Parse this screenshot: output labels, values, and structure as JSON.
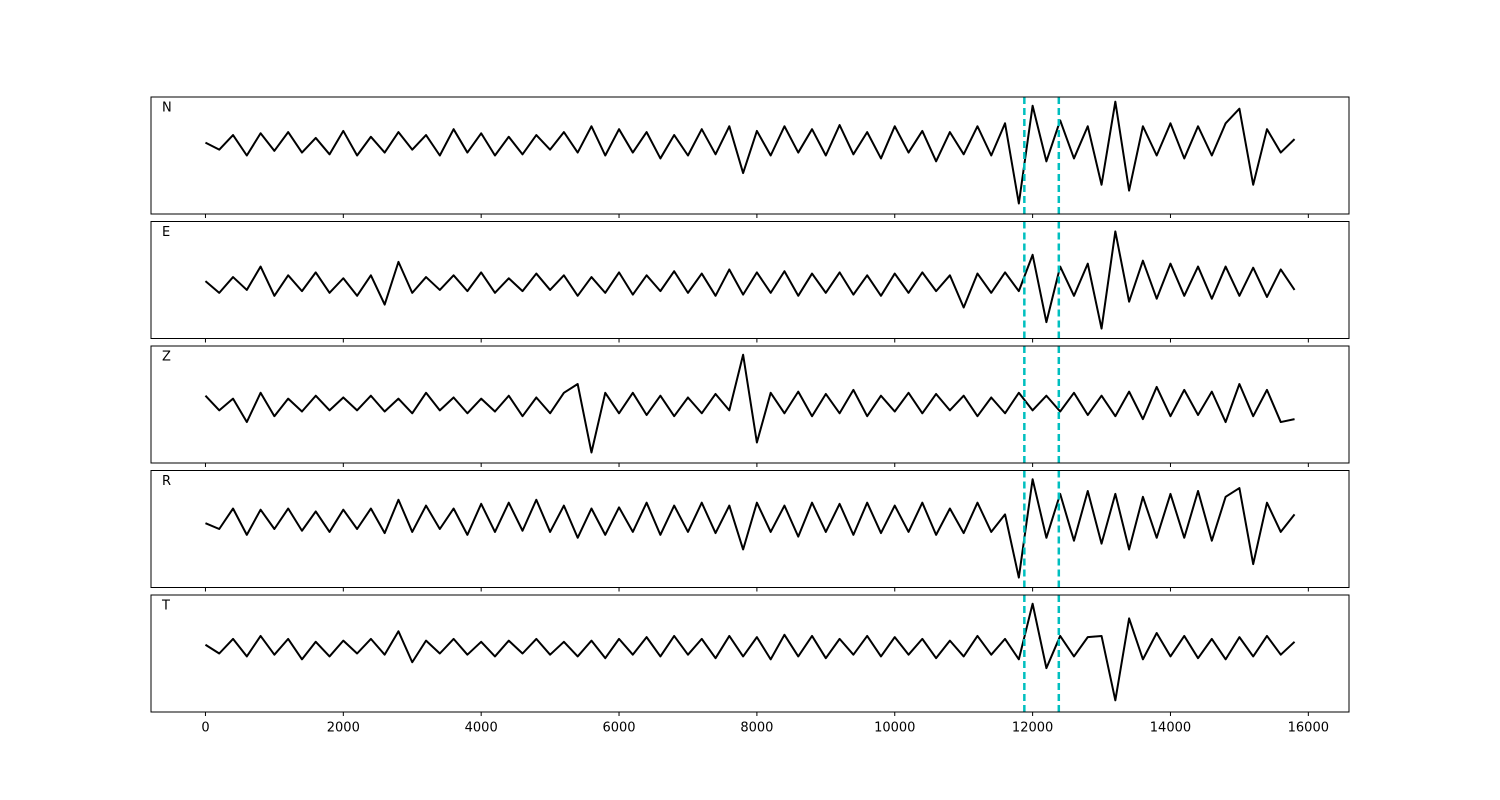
{
  "chart_data": [
    {
      "type": "line",
      "annotation": "N",
      "xlim": [
        -790,
        16590
      ],
      "ylim": [
        -1.2,
        0.8
      ],
      "vlines": [
        11880,
        12380
      ],
      "vline_color": "#00bfbf",
      "x": [
        0,
        200,
        400,
        600,
        800,
        1000,
        1200,
        1400,
        1600,
        1800,
        2000,
        2200,
        2400,
        2600,
        2800,
        3000,
        3200,
        3400,
        3600,
        3800,
        4000,
        4200,
        4400,
        4600,
        4800,
        5000,
        5200,
        5400,
        5600,
        5800,
        6000,
        6200,
        6400,
        6600,
        6800,
        7000,
        7200,
        7400,
        7600,
        7800,
        8000,
        8200,
        8400,
        8600,
        8800,
        9000,
        9200,
        9400,
        9600,
        9800,
        10000,
        10200,
        10400,
        10600,
        10800,
        11000,
        11200,
        11400,
        11600,
        11800,
        12000,
        12200,
        12400,
        12600,
        12800,
        13000,
        13200,
        13400,
        13600,
        13800,
        14000,
        14200,
        14400,
        14600,
        14800,
        15000,
        15200,
        15400,
        15600,
        15800
      ],
      "series": [
        {
          "color": "#000000",
          "values": [
            0.02,
            -0.1,
            0.15,
            -0.2,
            0.18,
            -0.12,
            0.2,
            -0.15,
            0.1,
            -0.18,
            0.22,
            -0.2,
            0.12,
            -0.15,
            0.2,
            -0.1,
            0.15,
            -0.2,
            0.25,
            -0.15,
            0.18,
            -0.2,
            0.12,
            -0.18,
            0.15,
            -0.1,
            0.2,
            -0.15,
            0.3,
            -0.2,
            0.25,
            -0.15,
            0.2,
            -0.25,
            0.15,
            -0.2,
            0.25,
            -0.18,
            0.3,
            -0.5,
            0.22,
            -0.2,
            0.3,
            -0.15,
            0.25,
            -0.2,
            0.32,
            -0.18,
            0.2,
            -0.25,
            0.3,
            -0.15,
            0.22,
            -0.3,
            0.2,
            -0.18,
            0.3,
            -0.2,
            0.35,
            -1.02,
            0.65,
            -0.3,
            0.4,
            -0.25,
            0.3,
            -0.7,
            0.72,
            -0.8,
            0.3,
            -0.2,
            0.35,
            -0.25,
            0.3,
            -0.2,
            0.35,
            0.6,
            -0.7,
            0.25,
            -0.15,
            0.08
          ]
        }
      ]
    },
    {
      "type": "line",
      "annotation": "E",
      "xlim": [
        -790,
        16590
      ],
      "ylim": [
        -0.93,
        1.07
      ],
      "vlines": [
        11880,
        12380
      ],
      "vline_color": "#00bfbf",
      "x": [
        0,
        200,
        400,
        600,
        800,
        1000,
        1200,
        1400,
        1600,
        1800,
        2000,
        2200,
        2400,
        2600,
        2800,
        3000,
        3200,
        3400,
        3600,
        3800,
        4000,
        4200,
        4400,
        4600,
        4800,
        5000,
        5200,
        5400,
        5600,
        5800,
        6000,
        6200,
        6400,
        6600,
        6800,
        7000,
        7200,
        7400,
        7600,
        7800,
        8000,
        8200,
        8400,
        8600,
        8800,
        9000,
        9200,
        9400,
        9600,
        9800,
        10000,
        10200,
        10400,
        10600,
        10800,
        11000,
        11200,
        11400,
        11600,
        11800,
        12000,
        12200,
        12400,
        12600,
        12800,
        13000,
        13200,
        13400,
        13600,
        13800,
        14000,
        14200,
        14400,
        14600,
        14800,
        15000,
        15200,
        15400,
        15600,
        15800
      ],
      "series": [
        {
          "color": "#000000",
          "values": [
            0.05,
            -0.15,
            0.12,
            -0.1,
            0.3,
            -0.2,
            0.15,
            -0.12,
            0.2,
            -0.15,
            0.1,
            -0.2,
            0.15,
            -0.35,
            0.38,
            -0.15,
            0.12,
            -0.1,
            0.15,
            -0.12,
            0.2,
            -0.15,
            0.1,
            -0.12,
            0.18,
            -0.1,
            0.15,
            -0.2,
            0.12,
            -0.15,
            0.2,
            -0.18,
            0.15,
            -0.12,
            0.22,
            -0.15,
            0.18,
            -0.2,
            0.25,
            -0.18,
            0.2,
            -0.15,
            0.22,
            -0.2,
            0.18,
            -0.15,
            0.2,
            -0.18,
            0.15,
            -0.2,
            0.18,
            -0.15,
            0.2,
            -0.12,
            0.15,
            -0.4,
            0.18,
            -0.15,
            0.2,
            -0.12,
            0.5,
            -0.65,
            0.3,
            -0.2,
            0.35,
            -0.76,
            0.9,
            -0.3,
            0.4,
            -0.25,
            0.35,
            -0.2,
            0.3,
            -0.25,
            0.3,
            -0.2,
            0.28,
            -0.22,
            0.25,
            -0.1
          ]
        }
      ]
    },
    {
      "type": "line",
      "annotation": "Z",
      "xlim": [
        -790,
        16590
      ],
      "ylim": [
        -1.0,
        1.0
      ],
      "vlines": [
        11880,
        12380
      ],
      "vline_color": "#00bfbf",
      "x": [
        0,
        200,
        400,
        600,
        800,
        1000,
        1200,
        1400,
        1600,
        1800,
        2000,
        2200,
        2400,
        2600,
        2800,
        3000,
        3200,
        3400,
        3600,
        3800,
        4000,
        4200,
        4400,
        4600,
        4800,
        5000,
        5200,
        5400,
        5600,
        5800,
        6000,
        6200,
        6400,
        6600,
        6800,
        7000,
        7200,
        7400,
        7600,
        7800,
        8000,
        8200,
        8400,
        8600,
        8800,
        9000,
        9200,
        9400,
        9600,
        9800,
        10000,
        10200,
        10400,
        10600,
        10800,
        11000,
        11200,
        11400,
        11600,
        11800,
        12000,
        12200,
        12400,
        12600,
        12800,
        13000,
        13200,
        13400,
        13600,
        13800,
        14000,
        14200,
        14400,
        14600,
        14800,
        15000,
        15200,
        15400,
        15600,
        15800
      ],
      "series": [
        {
          "color": "#000000",
          "values": [
            0.15,
            -0.1,
            0.1,
            -0.3,
            0.2,
            -0.2,
            0.1,
            -0.12,
            0.15,
            -0.1,
            0.12,
            -0.1,
            0.15,
            -0.12,
            0.1,
            -0.15,
            0.2,
            -0.1,
            0.12,
            -0.15,
            0.1,
            -0.12,
            0.15,
            -0.2,
            0.12,
            -0.15,
            0.2,
            0.35,
            -0.82,
            0.2,
            -0.15,
            0.2,
            -0.18,
            0.15,
            -0.2,
            0.12,
            -0.15,
            0.18,
            -0.1,
            0.85,
            -0.65,
            0.2,
            -0.15,
            0.22,
            -0.2,
            0.18,
            -0.15,
            0.25,
            -0.2,
            0.15,
            -0.12,
            0.2,
            -0.15,
            0.18,
            -0.1,
            0.15,
            -0.2,
            0.12,
            -0.15,
            0.2,
            -0.1,
            0.15,
            -0.12,
            0.2,
            -0.18,
            0.15,
            -0.2,
            0.22,
            -0.25,
            0.3,
            -0.2,
            0.25,
            -0.18,
            0.22,
            -0.3,
            0.35,
            -0.2,
            0.25,
            -0.3,
            -0.25
          ]
        }
      ]
    },
    {
      "type": "line",
      "annotation": "R",
      "xlim": [
        -790,
        16590
      ],
      "ylim": [
        -1.15,
        0.85
      ],
      "vlines": [
        11880,
        12380
      ],
      "vline_color": "#00bfbf",
      "x": [
        0,
        200,
        400,
        600,
        800,
        1000,
        1200,
        1400,
        1600,
        1800,
        2000,
        2200,
        2400,
        2600,
        2800,
        3000,
        3200,
        3400,
        3600,
        3800,
        4000,
        4200,
        4400,
        4600,
        4800,
        5000,
        5200,
        5400,
        5600,
        5800,
        6000,
        6200,
        6400,
        6600,
        6800,
        7000,
        7200,
        7400,
        7600,
        7800,
        8000,
        8200,
        8400,
        8600,
        8800,
        9000,
        9200,
        9400,
        9600,
        9800,
        10000,
        10200,
        10400,
        10600,
        10800,
        11000,
        11200,
        11400,
        11600,
        11800,
        12000,
        12200,
        12400,
        12600,
        12800,
        13000,
        13200,
        13400,
        13600,
        13800,
        14000,
        14200,
        14400,
        14600,
        14800,
        15000,
        15200,
        15400,
        15600,
        15800
      ],
      "series": [
        {
          "color": "#000000",
          "values": [
            -0.05,
            -0.15,
            0.2,
            -0.25,
            0.18,
            -0.15,
            0.2,
            -0.18,
            0.15,
            -0.2,
            0.18,
            -0.15,
            0.2,
            -0.22,
            0.35,
            -0.2,
            0.25,
            -0.15,
            0.2,
            -0.25,
            0.28,
            -0.2,
            0.3,
            -0.18,
            0.35,
            -0.2,
            0.25,
            -0.3,
            0.2,
            -0.25,
            0.22,
            -0.2,
            0.3,
            -0.25,
            0.25,
            -0.2,
            0.3,
            -0.22,
            0.25,
            -0.5,
            0.3,
            -0.2,
            0.25,
            -0.28,
            0.3,
            -0.2,
            0.28,
            -0.25,
            0.3,
            -0.22,
            0.25,
            -0.2,
            0.3,
            -0.25,
            0.2,
            -0.22,
            0.3,
            -0.2,
            0.1,
            -0.98,
            0.7,
            -0.3,
            0.45,
            -0.35,
            0.5,
            -0.4,
            0.45,
            -0.5,
            0.4,
            -0.3,
            0.45,
            -0.3,
            0.5,
            -0.35,
            0.4,
            0.55,
            -0.75,
            0.3,
            -0.2,
            0.1
          ]
        }
      ]
    },
    {
      "type": "line",
      "annotation": "T",
      "xlim": [
        -790,
        16590
      ],
      "ylim": [
        -1.1,
        0.9
      ],
      "vlines": [
        11880,
        12380
      ],
      "vline_color": "#00bfbf",
      "xticks": [
        0,
        2000,
        4000,
        6000,
        8000,
        10000,
        12000,
        14000,
        16000
      ],
      "x": [
        0,
        200,
        400,
        600,
        800,
        1000,
        1200,
        1400,
        1600,
        1800,
        2000,
        2200,
        2400,
        2600,
        2800,
        3000,
        3200,
        3400,
        3600,
        3800,
        4000,
        4200,
        4400,
        4600,
        4800,
        5000,
        5200,
        5400,
        5600,
        5800,
        6000,
        6200,
        6400,
        6600,
        6800,
        7000,
        7200,
        7400,
        7600,
        7800,
        8000,
        8200,
        8400,
        8600,
        8800,
        9000,
        9200,
        9400,
        9600,
        9800,
        10000,
        10200,
        10400,
        10600,
        10800,
        11000,
        11200,
        11400,
        11600,
        11800,
        12000,
        12200,
        12400,
        12600,
        12800,
        13000,
        13200,
        13400,
        13600,
        13800,
        14000,
        14200,
        14400,
        14600,
        14800,
        15000,
        15200,
        15400,
        15600,
        15800
      ],
      "series": [
        {
          "color": "#000000",
          "values": [
            0.05,
            -0.1,
            0.15,
            -0.15,
            0.2,
            -0.12,
            0.15,
            -0.2,
            0.1,
            -0.15,
            0.12,
            -0.1,
            0.15,
            -0.12,
            0.28,
            -0.25,
            0.12,
            -0.1,
            0.15,
            -0.12,
            0.1,
            -0.15,
            0.12,
            -0.1,
            0.15,
            -0.12,
            0.1,
            -0.15,
            0.12,
            -0.18,
            0.15,
            -0.12,
            0.18,
            -0.15,
            0.2,
            -0.12,
            0.15,
            -0.18,
            0.2,
            -0.15,
            0.18,
            -0.2,
            0.22,
            -0.15,
            0.2,
            -0.18,
            0.15,
            -0.12,
            0.2,
            -0.15,
            0.18,
            -0.12,
            0.15,
            -0.18,
            0.12,
            -0.15,
            0.2,
            -0.12,
            0.15,
            -0.2,
            0.75,
            -0.35,
            0.2,
            -0.15,
            0.18,
            0.2,
            -0.9,
            0.5,
            -0.2,
            0.25,
            -0.15,
            0.2,
            -0.18,
            0.15,
            -0.2,
            0.18,
            -0.15,
            0.2,
            -0.12,
            0.1
          ]
        }
      ]
    }
  ]
}
